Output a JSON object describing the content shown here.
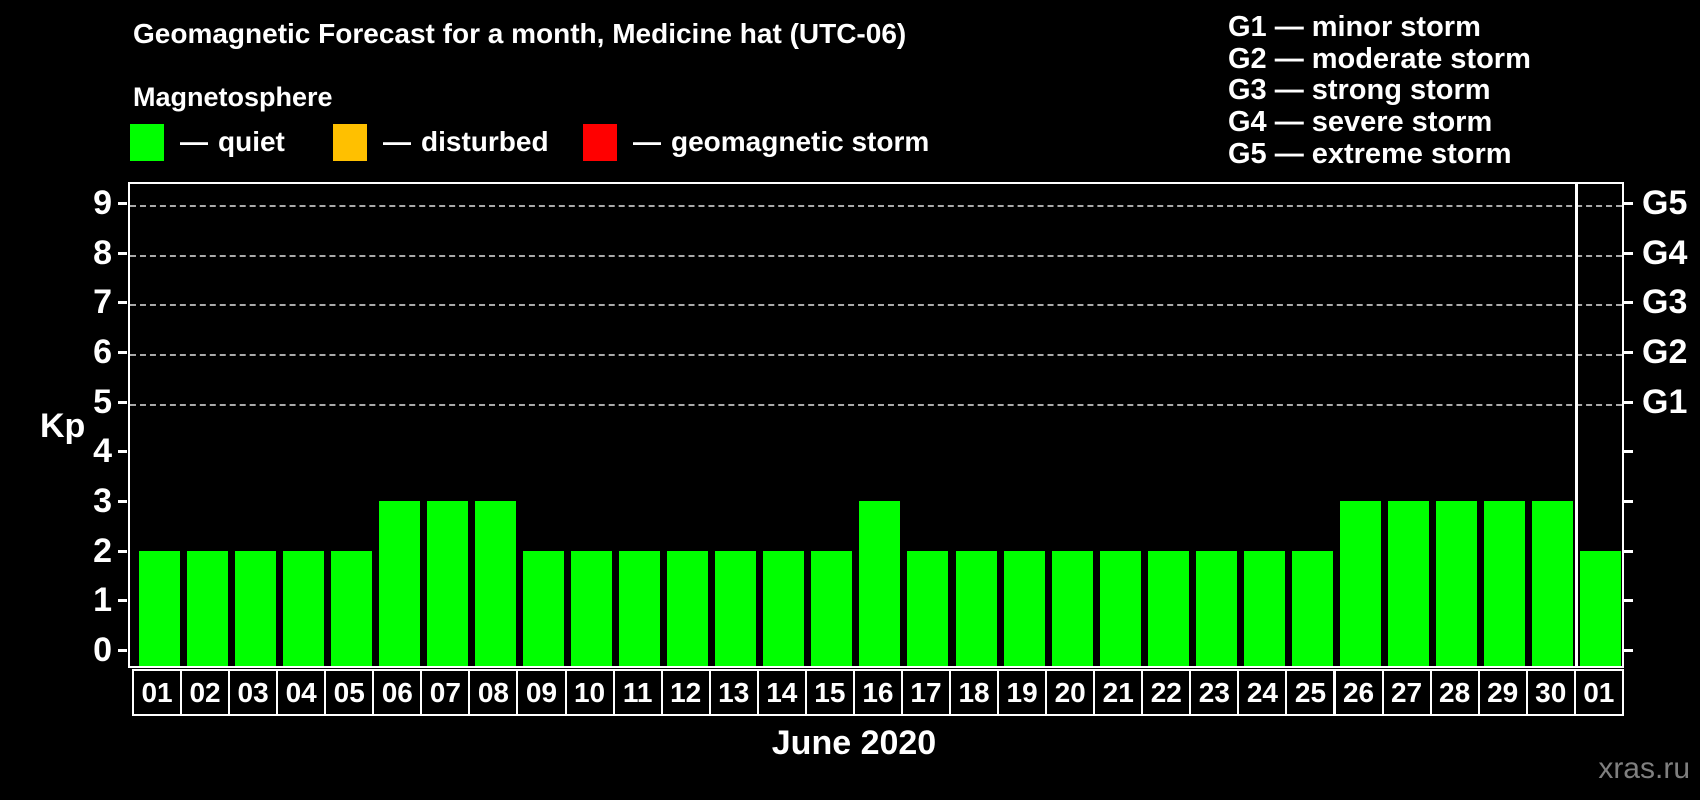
{
  "title": "Geomagnetic Forecast for a month, Medicine hat (UTC-06)",
  "subtitle": "Magnetosphere",
  "separator_dash": "—",
  "axis": {
    "y_label": "Kp"
  },
  "legend": {
    "items": [
      {
        "label": "quiet",
        "color": "#00ff00"
      },
      {
        "label": "disturbed",
        "color": "#ffc000"
      },
      {
        "label": "geomagnetic storm",
        "color": "#ff0000"
      }
    ]
  },
  "g_scale": [
    {
      "code": "G1",
      "label": "minor storm"
    },
    {
      "code": "G2",
      "label": "moderate storm"
    },
    {
      "code": "G3",
      "label": "strong storm"
    },
    {
      "code": "G4",
      "label": "severe storm"
    },
    {
      "code": "G5",
      "label": "extreme storm"
    }
  ],
  "watermark": "xras.ru",
  "chart_data": {
    "type": "bar",
    "title": "Geomagnetic Forecast for a month, Medicine hat (UTC-06)",
    "xlabel": "June 2020",
    "ylabel": "Kp",
    "ylim": [
      0,
      9
    ],
    "y_ticks": [
      0,
      1,
      2,
      3,
      4,
      5,
      6,
      7,
      8,
      9
    ],
    "gridlines_at": [
      5,
      6,
      7,
      8,
      9
    ],
    "grid": "dashed, horizontal, G-levels only",
    "legend_position": "top",
    "categories": [
      "01",
      "02",
      "03",
      "04",
      "05",
      "06",
      "07",
      "08",
      "09",
      "10",
      "11",
      "12",
      "13",
      "14",
      "15",
      "16",
      "17",
      "18",
      "19",
      "20",
      "21",
      "22",
      "23",
      "24",
      "25",
      "26",
      "27",
      "28",
      "29",
      "30",
      "01"
    ],
    "values": [
      2,
      2,
      2,
      2,
      2,
      3,
      3,
      3,
      2,
      2,
      2,
      2,
      2,
      2,
      2,
      3,
      2,
      2,
      2,
      2,
      2,
      2,
      2,
      2,
      2,
      3,
      3,
      3,
      3,
      3,
      2
    ],
    "bar_color": "#00ff00",
    "bar_status_all": "quiet",
    "right_axis": [
      {
        "kp": 5,
        "label": "G1"
      },
      {
        "kp": 6,
        "label": "G2"
      },
      {
        "kp": 7,
        "label": "G3"
      },
      {
        "kp": 8,
        "label": "G4"
      },
      {
        "kp": 9,
        "label": "G5"
      }
    ],
    "month_separator_after_index": 29
  }
}
